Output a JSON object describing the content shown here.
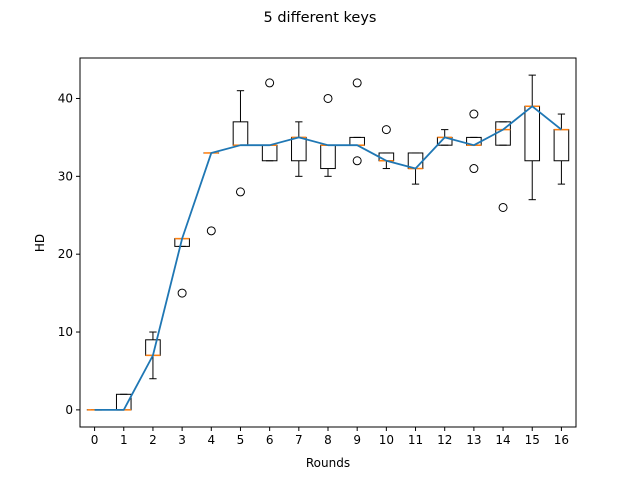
{
  "chart_data": {
    "type": "box",
    "title": "5 different keys",
    "xlabel": "Rounds",
    "ylabel": "HD",
    "xlim": [
      -0.5,
      16.5
    ],
    "ylim": [
      -2.2,
      45.2
    ],
    "xticks": [
      0,
      1,
      2,
      3,
      4,
      5,
      6,
      7,
      8,
      9,
      10,
      11,
      12,
      13,
      14,
      15,
      16
    ],
    "yticks": [
      0,
      10,
      20,
      30,
      40
    ],
    "grid": false,
    "line_color": "#1f77b4",
    "median_color": "#ff7f0e",
    "boxes": [
      {
        "x": 0,
        "wlo": 0,
        "q1": 0,
        "med": 0,
        "q3": 0,
        "whi": 0,
        "fliers": []
      },
      {
        "x": 1,
        "wlo": 0,
        "q1": 0,
        "med": 0,
        "q3": 2,
        "whi": 2,
        "fliers": []
      },
      {
        "x": 2,
        "wlo": 4,
        "q1": 7,
        "med": 7,
        "q3": 9,
        "whi": 10,
        "fliers": []
      },
      {
        "x": 3,
        "wlo": 21,
        "q1": 21,
        "med": 22,
        "q3": 22,
        "whi": 22,
        "fliers": [
          15
        ]
      },
      {
        "x": 4,
        "wlo": 33,
        "q1": 33,
        "med": 33,
        "q3": 33,
        "whi": 33,
        "fliers": [
          23
        ]
      },
      {
        "x": 5,
        "wlo": 34,
        "q1": 34,
        "med": 34,
        "q3": 37,
        "whi": 41,
        "fliers": [
          28
        ]
      },
      {
        "x": 6,
        "wlo": 32,
        "q1": 32,
        "med": 34,
        "q3": 34,
        "whi": 34,
        "fliers": [
          42
        ]
      },
      {
        "x": 7,
        "wlo": 30,
        "q1": 32,
        "med": 35,
        "q3": 35,
        "whi": 37,
        "fliers": []
      },
      {
        "x": 8,
        "wlo": 30,
        "q1": 31,
        "med": 34,
        "q3": 34,
        "whi": 34,
        "fliers": [
          40
        ]
      },
      {
        "x": 9,
        "wlo": 34,
        "q1": 34,
        "med": 34,
        "q3": 35,
        "whi": 35,
        "fliers": [
          32,
          42
        ]
      },
      {
        "x": 10,
        "wlo": 31,
        "q1": 32,
        "med": 32,
        "q3": 33,
        "whi": 33,
        "fliers": [
          36
        ]
      },
      {
        "x": 11,
        "wlo": 29,
        "q1": 31,
        "med": 31,
        "q3": 33,
        "whi": 33,
        "fliers": []
      },
      {
        "x": 12,
        "wlo": 34,
        "q1": 34,
        "med": 35,
        "q3": 35,
        "whi": 36,
        "fliers": []
      },
      {
        "x": 13,
        "wlo": 34,
        "q1": 34,
        "med": 34,
        "q3": 35,
        "whi": 35,
        "fliers": [
          31,
          38
        ]
      },
      {
        "x": 14,
        "wlo": 34,
        "q1": 34,
        "med": 36,
        "q3": 37,
        "whi": 37,
        "fliers": [
          26
        ]
      },
      {
        "x": 15,
        "wlo": 27,
        "q1": 32,
        "med": 39,
        "q3": 39,
        "whi": 43,
        "fliers": []
      },
      {
        "x": 16,
        "wlo": 29,
        "q1": 32,
        "med": 36,
        "q3": 36,
        "whi": 38,
        "fliers": []
      }
    ],
    "median_line": {
      "x": [
        0,
        1,
        2,
        3,
        4,
        5,
        6,
        7,
        8,
        9,
        10,
        11,
        12,
        13,
        14,
        15,
        16
      ],
      "y": [
        0,
        0,
        7,
        22,
        33,
        34,
        34,
        35,
        34,
        34,
        32,
        31,
        35,
        34,
        36,
        39,
        36
      ]
    }
  }
}
